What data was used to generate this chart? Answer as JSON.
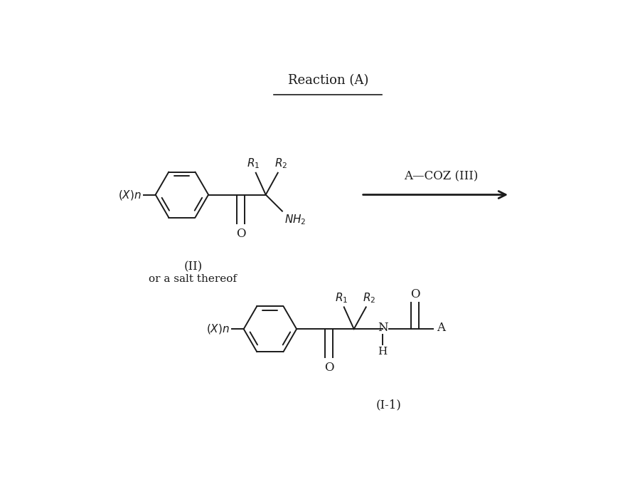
{
  "title": "Reaction (A)",
  "background_color": "#ffffff",
  "text_color": "#1a1a1a",
  "figsize": [
    9.0,
    7.01
  ],
  "dpi": 100,
  "reagent_label": "A—COZ (III)",
  "compound_II_label": "(II)",
  "compound_II_sublabel": "or a salt thereof",
  "compound_I1_label": "(I-1)",
  "ring_r": 0.48,
  "lw": 1.4
}
